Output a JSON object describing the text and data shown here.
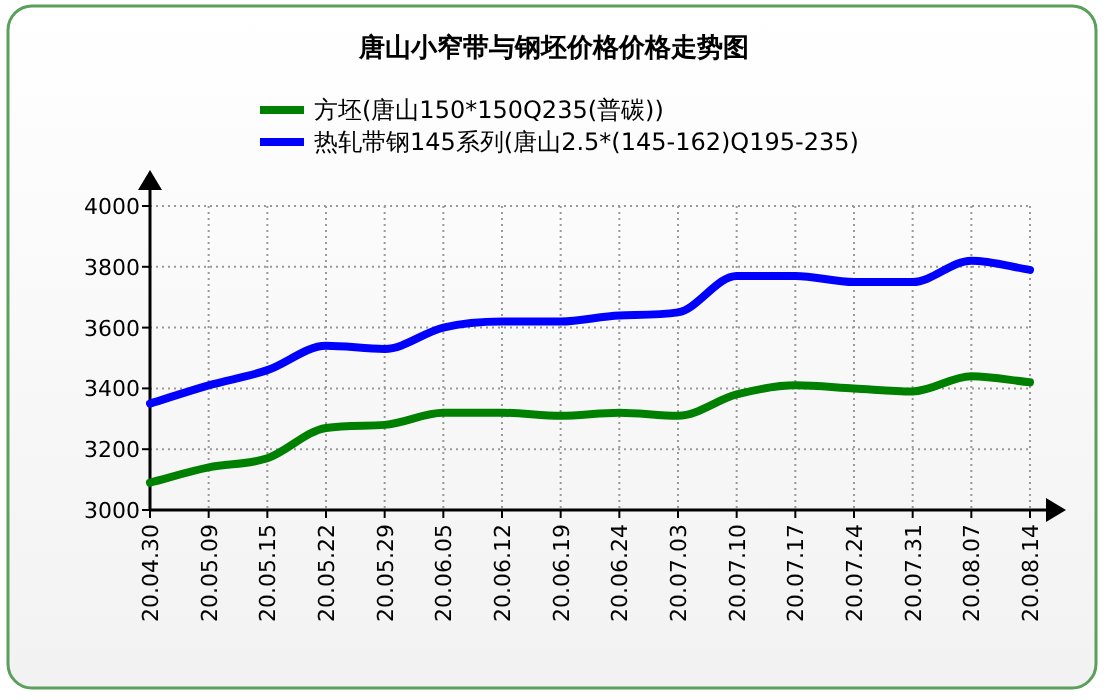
{
  "chart_data": {
    "type": "line",
    "title": "唐山小窄带与钢坯价格价格走势图",
    "categories": [
      "20.04.30",
      "20.05.09",
      "20.05.15",
      "20.05.22",
      "20.05.29",
      "20.06.05",
      "20.06.12",
      "20.06.19",
      "20.06.24",
      "20.07.03",
      "20.07.10",
      "20.07.17",
      "20.07.24",
      "20.07.31",
      "20.08.07",
      "20.08.14"
    ],
    "series": [
      {
        "name": "方坯(唐山150*150Q235(普碳))",
        "color": "#008000",
        "values": [
          3090,
          3140,
          3170,
          3270,
          3280,
          3320,
          3320,
          3310,
          3320,
          3310,
          3380,
          3410,
          3400,
          3390,
          3440,
          3420
        ]
      },
      {
        "name": "热轧带钢145系列(唐山2.5*(145-162)Q195-235)",
        "color": "#0000ff",
        "values": [
          3350,
          3410,
          3460,
          3540,
          3530,
          3600,
          3620,
          3620,
          3640,
          3650,
          3770,
          3770,
          3750,
          3750,
          3820,
          3790
        ]
      }
    ],
    "ylim": [
      3000,
      4000
    ],
    "yticks": [
      3000,
      3200,
      3400,
      3600,
      3800,
      4000
    ],
    "grid": true,
    "legend": "top",
    "marker": "none",
    "line_style": "solid"
  }
}
